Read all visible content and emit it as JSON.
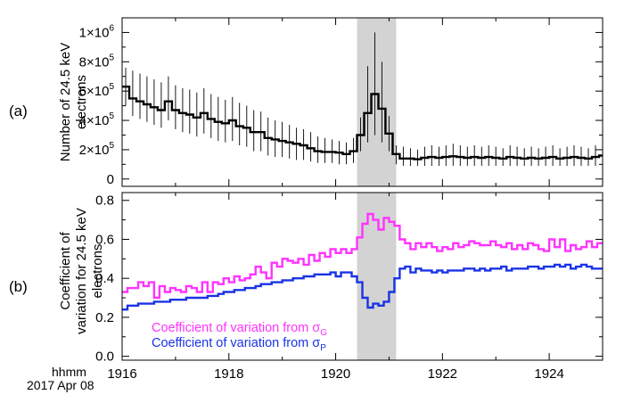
{
  "chart_data": [
    {
      "panel": "(a)",
      "type": "line",
      "step": true,
      "ylabel_lines": [
        "Number of 24.5 keV",
        "electrons"
      ],
      "xlim": [
        1916,
        1925
      ],
      "ylim": [
        -50000,
        1100000
      ],
      "yticks": [
        {
          "value": 0,
          "label": "0",
          "exp": ""
        },
        {
          "value": 200000,
          "label": "2×10",
          "exp": "5"
        },
        {
          "value": 400000,
          "label": "4×10",
          "exp": "5"
        },
        {
          "value": 600000,
          "label": "6×10",
          "exp": "5"
        },
        {
          "value": 800000,
          "label": "8×10",
          "exp": "5"
        },
        {
          "value": 1000000,
          "label": "1×10",
          "exp": "6"
        }
      ],
      "shaded_interval": [
        1920.4,
        1921.133
      ],
      "series": [
        {
          "color": "#000000",
          "x": [
            1916.0,
            1916.133,
            1916.267,
            1916.4,
            1916.533,
            1916.667,
            1916.8,
            1916.933,
            1917.067,
            1917.2,
            1917.333,
            1917.467,
            1917.6,
            1917.733,
            1917.867,
            1918.0,
            1918.133,
            1918.267,
            1918.4,
            1918.533,
            1918.667,
            1918.8,
            1918.933,
            1919.067,
            1919.2,
            1919.333,
            1919.467,
            1919.6,
            1919.733,
            1919.867,
            1920.0,
            1920.133,
            1920.267,
            1920.4,
            1920.533,
            1920.667,
            1920.8,
            1920.933,
            1921.067,
            1921.2,
            1921.333,
            1921.467,
            1921.6,
            1921.733,
            1921.867,
            1922.0,
            1922.133,
            1922.267,
            1922.4,
            1922.533,
            1922.667,
            1922.8,
            1922.933,
            1923.067,
            1923.2,
            1923.333,
            1923.467,
            1923.6,
            1923.733,
            1923.867,
            1924.0,
            1924.133,
            1924.267,
            1924.4,
            1924.533,
            1924.667,
            1924.8,
            1924.933
          ],
          "y": [
            630000,
            550000,
            530000,
            510000,
            490000,
            470000,
            530000,
            470000,
            450000,
            440000,
            420000,
            450000,
            410000,
            390000,
            380000,
            400000,
            360000,
            350000,
            320000,
            320000,
            280000,
            270000,
            260000,
            250000,
            240000,
            230000,
            210000,
            190000,
            185000,
            185000,
            180000,
            170000,
            190000,
            300000,
            450000,
            580000,
            480000,
            310000,
            170000,
            140000,
            140000,
            135000,
            145000,
            150000,
            145000,
            150000,
            155000,
            150000,
            145000,
            150000,
            145000,
            150000,
            145000,
            140000,
            150000,
            145000,
            140000,
            145000,
            140000,
            145000,
            150000,
            140000,
            145000,
            150000,
            145000,
            140000,
            150000,
            160000
          ],
          "error_hi": [
            760000,
            740000,
            720000,
            700000,
            680000,
            660000,
            700000,
            640000,
            620000,
            610000,
            590000,
            620000,
            580000,
            560000,
            540000,
            560000,
            520000,
            500000,
            470000,
            460000,
            420000,
            400000,
            390000,
            370000,
            350000,
            340000,
            320000,
            290000,
            280000,
            270000,
            260000,
            250000,
            280000,
            420000,
            770000,
            1000000,
            800000,
            430000,
            230000,
            220000,
            210000,
            200000,
            220000,
            230000,
            220000,
            230000,
            240000,
            230000,
            220000,
            230000,
            220000,
            230000,
            220000,
            210000,
            230000,
            220000,
            210000,
            220000,
            210000,
            220000,
            230000,
            210000,
            220000,
            230000,
            220000,
            210000,
            230000,
            240000
          ],
          "error_lo": [
            500000,
            430000,
            410000,
            390000,
            370000,
            350000,
            400000,
            340000,
            320000,
            310000,
            290000,
            310000,
            280000,
            260000,
            250000,
            260000,
            230000,
            220000,
            190000,
            190000,
            160000,
            150000,
            150000,
            140000,
            130000,
            130000,
            120000,
            110000,
            110000,
            110000,
            100000,
            100000,
            110000,
            190000,
            250000,
            300000,
            250000,
            190000,
            100000,
            90000,
            90000,
            90000,
            90000,
            90000,
            90000,
            90000,
            90000,
            90000,
            90000,
            90000,
            90000,
            90000,
            90000,
            90000,
            90000,
            90000,
            90000,
            90000,
            90000,
            90000,
            90000,
            90000,
            90000,
            90000,
            90000,
            90000,
            90000,
            100000
          ]
        }
      ]
    },
    {
      "panel": "(b)",
      "type": "line",
      "step": true,
      "ylabel_lines": [
        "Coefficient of",
        "variation for 24.5 keV",
        "electrons"
      ],
      "xlabel_lines": [
        "hhmm",
        "2017 Apr 08"
      ],
      "xlim": [
        1916,
        1925
      ],
      "ylim": [
        -0.02,
        0.84
      ],
      "xticks": [
        1916,
        1918,
        1920,
        1922,
        1924
      ],
      "xtick_labels": [
        "1916",
        "1918",
        "1920",
        "1922",
        "1924"
      ],
      "yticks": [
        0.0,
        0.2,
        0.4,
        0.6,
        0.8
      ],
      "ytick_labels": [
        "0.0",
        "0.2",
        "0.4",
        "0.6",
        "0.8"
      ],
      "shaded_interval": [
        1920.4,
        1921.133
      ],
      "series": [
        {
          "name": "Coefficient of variation from σ",
          "sub": "G",
          "color": "#ff33ff",
          "x": [
            1916.0,
            1916.1,
            1916.2,
            1916.3,
            1916.4,
            1916.5,
            1916.6,
            1916.7,
            1916.8,
            1916.9,
            1917.0,
            1917.1,
            1917.2,
            1917.3,
            1917.4,
            1917.5,
            1917.6,
            1917.7,
            1917.8,
            1917.9,
            1918.0,
            1918.1,
            1918.2,
            1918.3,
            1918.4,
            1918.5,
            1918.6,
            1918.7,
            1918.8,
            1918.9,
            1919.0,
            1919.1,
            1919.2,
            1919.3,
            1919.4,
            1919.5,
            1919.6,
            1919.7,
            1919.8,
            1919.9,
            1920.0,
            1920.1,
            1920.2,
            1920.3,
            1920.4,
            1920.5,
            1920.6,
            1920.7,
            1920.8,
            1920.9,
            1921.0,
            1921.1,
            1921.2,
            1921.3,
            1921.4,
            1921.5,
            1921.6,
            1921.7,
            1921.8,
            1921.9,
            1922.0,
            1922.1,
            1922.2,
            1922.3,
            1922.4,
            1922.5,
            1922.6,
            1922.7,
            1922.8,
            1922.9,
            1923.0,
            1923.1,
            1923.2,
            1923.3,
            1923.4,
            1923.5,
            1923.6,
            1923.7,
            1923.8,
            1923.9,
            1924.0,
            1924.1,
            1924.2,
            1924.3,
            1924.4,
            1924.5,
            1924.6,
            1924.7,
            1924.8,
            1924.9
          ],
          "y": [
            0.33,
            0.35,
            0.35,
            0.38,
            0.36,
            0.38,
            0.3,
            0.36,
            0.33,
            0.35,
            0.34,
            0.33,
            0.36,
            0.35,
            0.33,
            0.38,
            0.33,
            0.38,
            0.37,
            0.4,
            0.38,
            0.41,
            0.39,
            0.4,
            0.42,
            0.46,
            0.43,
            0.4,
            0.48,
            0.46,
            0.5,
            0.49,
            0.48,
            0.5,
            0.47,
            0.52,
            0.49,
            0.53,
            0.51,
            0.55,
            0.53,
            0.55,
            0.53,
            0.55,
            0.61,
            0.68,
            0.73,
            0.7,
            0.65,
            0.71,
            0.69,
            0.67,
            0.6,
            0.58,
            0.55,
            0.58,
            0.56,
            0.58,
            0.56,
            0.54,
            0.56,
            0.55,
            0.58,
            0.56,
            0.57,
            0.59,
            0.58,
            0.57,
            0.57,
            0.59,
            0.57,
            0.56,
            0.58,
            0.55,
            0.57,
            0.55,
            0.58,
            0.57,
            0.55,
            0.54,
            0.6,
            0.56,
            0.6,
            0.54,
            0.57,
            0.55,
            0.56,
            0.59,
            0.56,
            0.58
          ]
        },
        {
          "name": "Coefficient of variation from σ",
          "sub": "P",
          "color": "#1a33e6",
          "x": [
            1916.0,
            1916.1,
            1916.2,
            1916.3,
            1916.4,
            1916.5,
            1916.6,
            1916.7,
            1916.8,
            1916.9,
            1917.0,
            1917.1,
            1917.2,
            1917.3,
            1917.4,
            1917.5,
            1917.6,
            1917.7,
            1917.8,
            1917.9,
            1918.0,
            1918.1,
            1918.2,
            1918.3,
            1918.4,
            1918.5,
            1918.6,
            1918.7,
            1918.8,
            1918.9,
            1919.0,
            1919.1,
            1919.2,
            1919.3,
            1919.4,
            1919.5,
            1919.6,
            1919.7,
            1919.8,
            1919.9,
            1920.0,
            1920.1,
            1920.2,
            1920.3,
            1920.4,
            1920.5,
            1920.6,
            1920.7,
            1920.8,
            1920.9,
            1921.0,
            1921.1,
            1921.2,
            1921.3,
            1921.4,
            1921.5,
            1921.6,
            1921.7,
            1921.8,
            1921.9,
            1922.0,
            1922.1,
            1922.2,
            1922.3,
            1922.4,
            1922.5,
            1922.6,
            1922.7,
            1922.8,
            1922.9,
            1923.0,
            1923.1,
            1923.2,
            1923.3,
            1923.4,
            1923.5,
            1923.6,
            1923.7,
            1923.8,
            1923.9,
            1924.0,
            1924.1,
            1924.2,
            1924.3,
            1924.4,
            1924.5,
            1924.6,
            1924.7,
            1924.8,
            1924.9
          ],
          "y": [
            0.24,
            0.26,
            0.26,
            0.27,
            0.27,
            0.27,
            0.28,
            0.28,
            0.28,
            0.29,
            0.29,
            0.29,
            0.3,
            0.3,
            0.3,
            0.3,
            0.31,
            0.31,
            0.32,
            0.33,
            0.33,
            0.34,
            0.34,
            0.35,
            0.35,
            0.36,
            0.37,
            0.37,
            0.38,
            0.38,
            0.39,
            0.39,
            0.4,
            0.4,
            0.41,
            0.41,
            0.42,
            0.42,
            0.42,
            0.43,
            0.41,
            0.43,
            0.43,
            0.41,
            0.38,
            0.3,
            0.25,
            0.27,
            0.26,
            0.28,
            0.33,
            0.4,
            0.45,
            0.46,
            0.43,
            0.45,
            0.44,
            0.44,
            0.43,
            0.44,
            0.43,
            0.44,
            0.44,
            0.44,
            0.45,
            0.45,
            0.44,
            0.45,
            0.44,
            0.45,
            0.45,
            0.46,
            0.44,
            0.45,
            0.45,
            0.45,
            0.46,
            0.46,
            0.45,
            0.46,
            0.46,
            0.47,
            0.46,
            0.47,
            0.45,
            0.46,
            0.47,
            0.46,
            0.45,
            0.45
          ]
        }
      ]
    }
  ]
}
